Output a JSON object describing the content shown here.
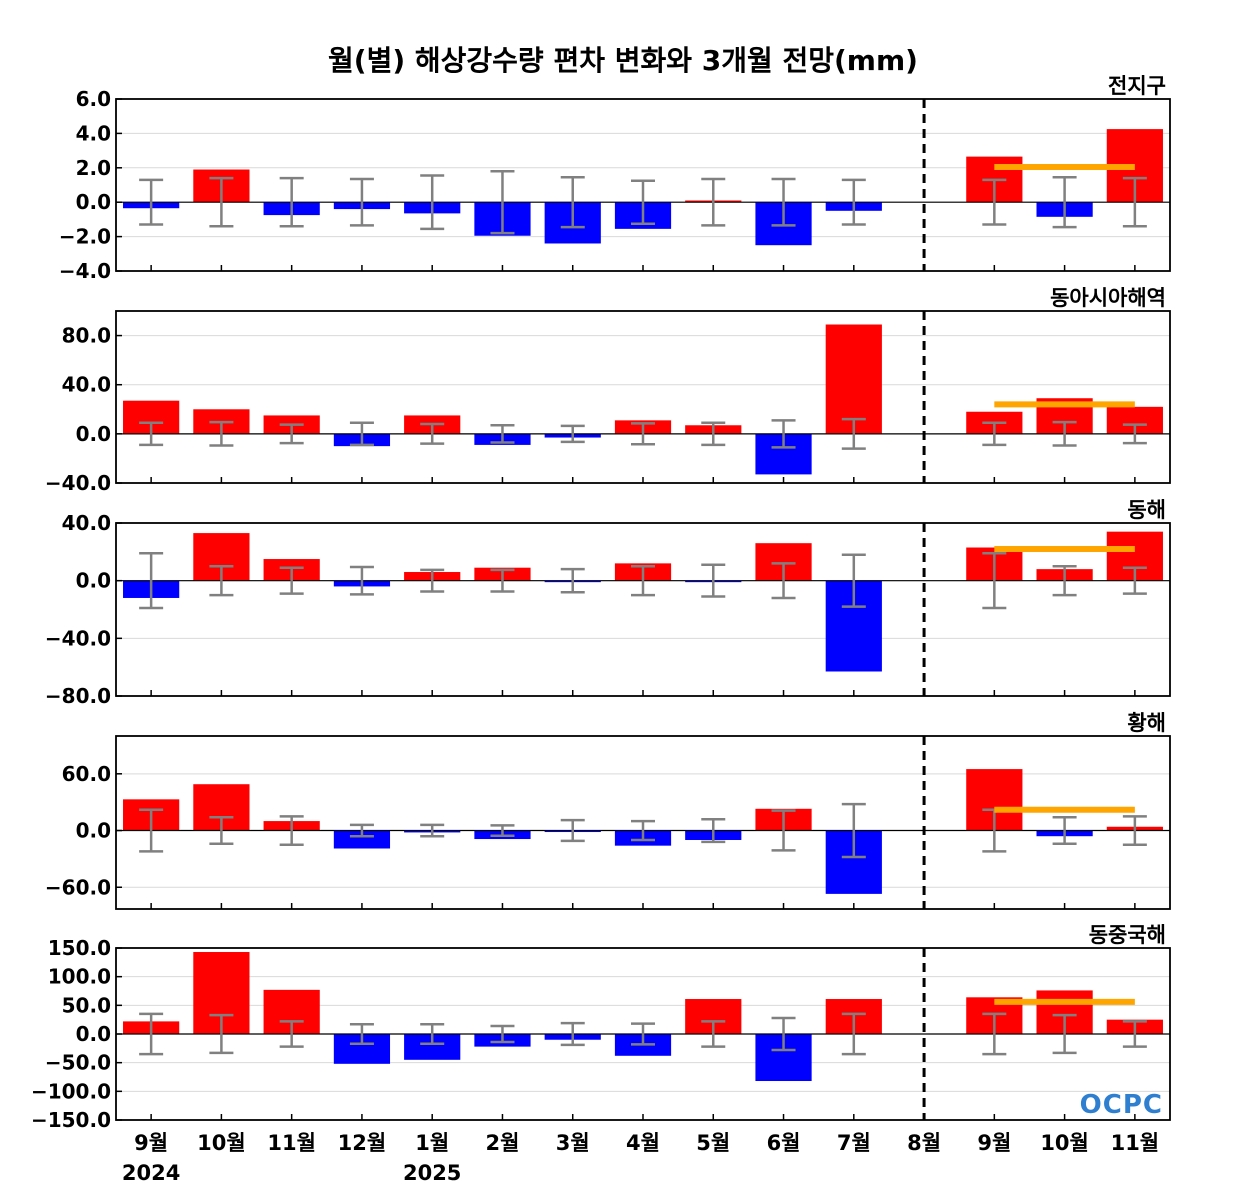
{
  "title": "월(별) 해상강수량 편차 변화와 3개월 전망(mm)",
  "logo_text": "OCPC",
  "colors": {
    "positive": "#ff0000",
    "negative": "#0000ff",
    "errorbar": "#808080",
    "forecast": "#ffa500",
    "grid": "#d9d9d9",
    "divider": "#000000"
  },
  "chart_data": {
    "type": "bar",
    "categories": [
      "9월",
      "10월",
      "11월",
      "12월",
      "1월",
      "2월",
      "3월",
      "4월",
      "5월",
      "6월",
      "7월",
      "8월",
      "9월",
      "10월",
      "11월"
    ],
    "year_labels": [
      {
        "category_index": 0,
        "label": "2024"
      },
      {
        "category_index": 4,
        "label": "2025"
      }
    ],
    "divider_category_index": 11,
    "forecast_line_range": [
      12,
      14
    ],
    "panels": [
      {
        "title": "전지구",
        "ylim": [
          -4,
          6
        ],
        "yticks": [
          -4,
          -2,
          0,
          2,
          4,
          6
        ],
        "ytick_labels": [
          "−4.0",
          "−2.0",
          "0.0",
          "2.0",
          "4.0",
          "6.0"
        ],
        "values": [
          -0.35,
          1.9,
          -0.75,
          -0.4,
          -0.65,
          -1.95,
          -2.4,
          -1.55,
          0.1,
          -2.5,
          -0.5,
          0,
          2.65,
          -0.85,
          4.25
        ],
        "error": [
          1.3,
          1.4,
          1.4,
          1.35,
          1.55,
          1.8,
          1.45,
          1.25,
          1.35,
          1.35,
          1.3,
          0,
          1.3,
          1.45,
          1.4
        ],
        "forecast": 2.05,
        "grid": true
      },
      {
        "title": "동아시아해역",
        "ylim": [
          -40,
          100
        ],
        "yticks": [
          -40,
          0,
          40,
          80
        ],
        "ytick_labels": [
          "−40.0",
          "0.0",
          "40.0",
          "80.0"
        ],
        "values": [
          27,
          20,
          15,
          -10,
          15,
          -9,
          -3,
          11,
          7,
          -33,
          89,
          0,
          18,
          29,
          22
        ],
        "error": [
          9,
          9.5,
          7.5,
          9,
          8,
          7,
          6.5,
          8.5,
          9,
          11,
          12,
          0,
          9,
          9.5,
          7.5
        ],
        "forecast": 24,
        "grid": true
      },
      {
        "title": "동해",
        "ylim": [
          -80,
          40
        ],
        "yticks": [
          -80,
          -40,
          0,
          40
        ],
        "ytick_labels": [
          "−80.0",
          "−40.0",
          "0.0",
          "40.0"
        ],
        "values": [
          -12,
          33,
          15,
          -4,
          6,
          9,
          -1,
          12,
          -1,
          26,
          -63,
          0,
          23,
          8,
          34
        ],
        "error": [
          19,
          10,
          9,
          9.5,
          7.5,
          7.5,
          8,
          10,
          11,
          12,
          18,
          0,
          19,
          10,
          9
        ],
        "forecast": 22,
        "grid": true
      },
      {
        "title": "황해",
        "ylim": [
          -83,
          100
        ],
        "yticks": [
          -60,
          0,
          60
        ],
        "ytick_labels": [
          "−60.0",
          "0.0",
          "60.0"
        ],
        "values": [
          33,
          49,
          10,
          -19,
          -2,
          -9,
          -1,
          -16,
          -10,
          23,
          -67,
          0,
          65,
          -6,
          4
        ],
        "error": [
          22,
          14,
          15,
          6,
          6,
          5.5,
          11,
          10,
          12,
          21,
          28,
          0,
          22,
          14,
          15
        ],
        "forecast": 22,
        "grid": true
      },
      {
        "title": "동중국해",
        "ylim": [
          -150,
          150
        ],
        "yticks": [
          -150,
          -100,
          -50,
          0,
          50,
          100,
          150
        ],
        "ytick_labels": [
          "−150.0",
          "−100.0",
          "−50.0",
          "0.0",
          "50.0",
          "100.0",
          "150.0"
        ],
        "values": [
          22,
          143,
          77,
          -52,
          -45,
          -22,
          -10,
          -38,
          61,
          -82,
          61,
          0,
          64,
          76,
          25
        ],
        "error": [
          35,
          33,
          22,
          17,
          17,
          14,
          19,
          18,
          22,
          28,
          35,
          0,
          35,
          33,
          22
        ],
        "forecast": 56,
        "grid": true
      }
    ]
  }
}
